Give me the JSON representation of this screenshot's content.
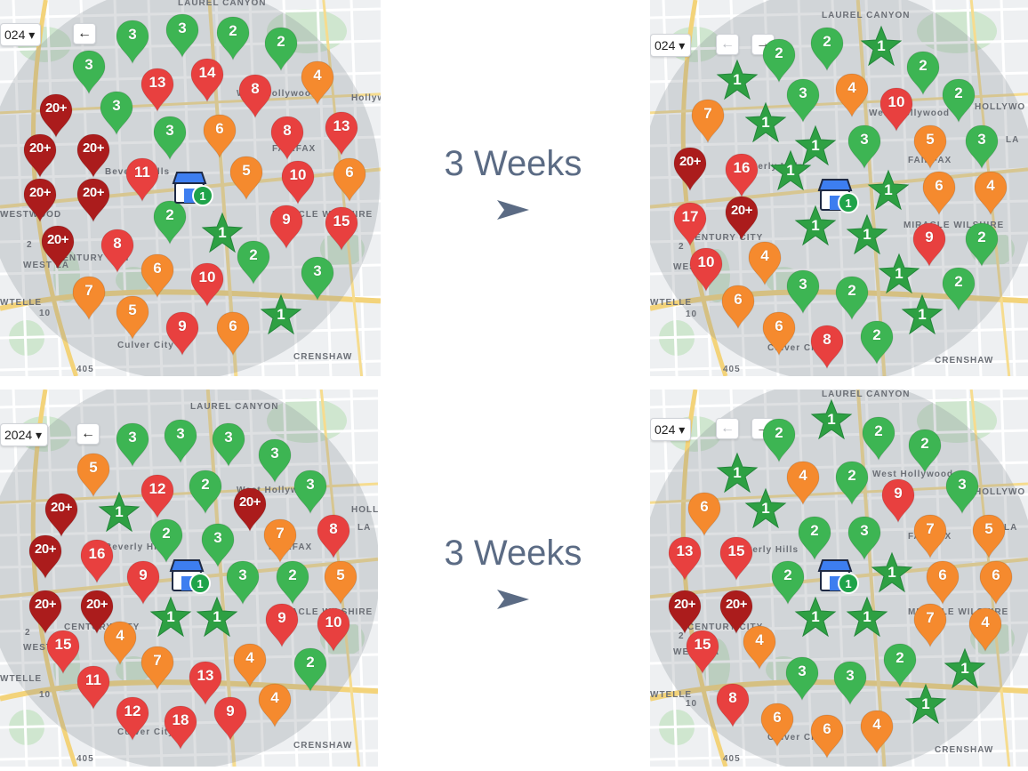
{
  "captions": [
    {
      "text": "3 Weeks"
    },
    {
      "text": "3 Weeks"
    }
  ],
  "colors": {
    "green": "#3db553",
    "orange": "#f58a2e",
    "red": "#e8403f",
    "darkred": "#ab1c1c",
    "star": "#2ea043",
    "store": "#3d7ef0",
    "caption": "#5b6b84"
  },
  "panels": [
    {
      "id": "top-left",
      "date_label": "024 ▾",
      "labels": [
        {
          "text": "LAUREL CANYON"
        },
        {
          "text": "Hollywo"
        },
        {
          "text": "Beverly Hills"
        },
        {
          "text": "West Hollywood"
        },
        {
          "text": "FAIRFAX"
        },
        {
          "text": "MIRACLE WILSHIRE"
        },
        {
          "text": "CENTURY CITY"
        },
        {
          "text": "Culver City"
        },
        {
          "text": "CRENSHAW"
        },
        {
          "text": "WESTWOOD"
        },
        {
          "text": "WEST LA"
        },
        {
          "text": "WTELLE"
        },
        {
          "text": "405"
        },
        {
          "text": "10"
        },
        {
          "text": "2"
        }
      ],
      "pins": [
        {
          "v": "3",
          "c": "green"
        },
        {
          "v": "3",
          "c": "green"
        },
        {
          "v": "2",
          "c": "green"
        },
        {
          "v": "2",
          "c": "green"
        },
        {
          "v": "3",
          "c": "green"
        },
        {
          "v": "13",
          "c": "red"
        },
        {
          "v": "14",
          "c": "red"
        },
        {
          "v": "8",
          "c": "red"
        },
        {
          "v": "4",
          "c": "orange"
        },
        {
          "v": "20+",
          "c": "darkred"
        },
        {
          "v": "3",
          "c": "green"
        },
        {
          "v": "3",
          "c": "green"
        },
        {
          "v": "6",
          "c": "orange"
        },
        {
          "v": "8",
          "c": "red"
        },
        {
          "v": "13",
          "c": "red"
        },
        {
          "v": "20+",
          "c": "darkred"
        },
        {
          "v": "20+",
          "c": "darkred"
        },
        {
          "v": "11",
          "c": "red"
        },
        {
          "v": "5",
          "c": "orange"
        },
        {
          "v": "10",
          "c": "red"
        },
        {
          "v": "6",
          "c": "orange"
        },
        {
          "v": "20+",
          "c": "darkred"
        },
        {
          "v": "20+",
          "c": "darkred"
        },
        {
          "v": "2",
          "c": "green"
        },
        {
          "v": "9",
          "c": "red"
        },
        {
          "v": "15",
          "c": "red"
        },
        {
          "v": "20+",
          "c": "darkred"
        },
        {
          "v": "8",
          "c": "red"
        },
        {
          "v": "6",
          "c": "orange"
        },
        {
          "v": "10",
          "c": "red"
        },
        {
          "v": "2",
          "c": "green"
        },
        {
          "v": "3",
          "c": "green"
        },
        {
          "v": "7",
          "c": "orange"
        },
        {
          "v": "5",
          "c": "orange"
        },
        {
          "v": "9",
          "c": "red"
        },
        {
          "v": "6",
          "c": "orange"
        }
      ],
      "stars": [
        {
          "v": "1"
        },
        {
          "v": "1"
        }
      ],
      "store_badge": "1"
    },
    {
      "id": "top-right",
      "date_label": "024 ▾",
      "labels": [
        {
          "text": "LAUREL CANYON"
        },
        {
          "text": "HOLLYWO"
        },
        {
          "text": "Beverly Hills"
        },
        {
          "text": "West Hollywood"
        },
        {
          "text": "FAIRFAX"
        },
        {
          "text": "MIRACLE WILSHIRE"
        },
        {
          "text": "CENTURY CITY"
        },
        {
          "text": "Culver City"
        },
        {
          "text": "CRENSHAW"
        },
        {
          "text": "WEST LA"
        },
        {
          "text": "WTELLE"
        },
        {
          "text": "405"
        },
        {
          "text": "10"
        },
        {
          "text": "2"
        },
        {
          "text": "LA"
        }
      ],
      "pins": [
        {
          "v": "2",
          "c": "green"
        },
        {
          "v": "2",
          "c": "green"
        },
        {
          "v": "2",
          "c": "green"
        },
        {
          "v": "3",
          "c": "green"
        },
        {
          "v": "4",
          "c": "orange"
        },
        {
          "v": "10",
          "c": "red"
        },
        {
          "v": "2",
          "c": "green"
        },
        {
          "v": "7",
          "c": "orange"
        },
        {
          "v": "3",
          "c": "green"
        },
        {
          "v": "5",
          "c": "orange"
        },
        {
          "v": "3",
          "c": "green"
        },
        {
          "v": "20+",
          "c": "darkred"
        },
        {
          "v": "16",
          "c": "red"
        },
        {
          "v": "6",
          "c": "orange"
        },
        {
          "v": "4",
          "c": "orange"
        },
        {
          "v": "17",
          "c": "red"
        },
        {
          "v": "20+",
          "c": "darkred"
        },
        {
          "v": "9",
          "c": "red"
        },
        {
          "v": "2",
          "c": "green"
        },
        {
          "v": "10",
          "c": "red"
        },
        {
          "v": "4",
          "c": "orange"
        },
        {
          "v": "3",
          "c": "green"
        },
        {
          "v": "2",
          "c": "green"
        },
        {
          "v": "2",
          "c": "green"
        },
        {
          "v": "6",
          "c": "orange"
        },
        {
          "v": "6",
          "c": "orange"
        },
        {
          "v": "8",
          "c": "red"
        },
        {
          "v": "2",
          "c": "green"
        }
      ],
      "stars": [
        {
          "v": "1"
        },
        {
          "v": "1"
        },
        {
          "v": "1"
        },
        {
          "v": "1"
        },
        {
          "v": "1"
        },
        {
          "v": "1"
        },
        {
          "v": "1"
        },
        {
          "v": "1"
        },
        {
          "v": "1"
        },
        {
          "v": "1"
        }
      ],
      "store_badge": "1"
    },
    {
      "id": "bottom-left",
      "date_label": "2024 ▾",
      "labels": [
        {
          "text": "LAUREL CANYON"
        },
        {
          "text": "HOLLYWO"
        },
        {
          "text": "Beverly Hills"
        },
        {
          "text": "West Hollywood"
        },
        {
          "text": "FAIRFAX"
        },
        {
          "text": "MIRACLE WILSHIRE"
        },
        {
          "text": "CENTURY CITY"
        },
        {
          "text": "Culver City"
        },
        {
          "text": "CRENSHAW"
        },
        {
          "text": "WEST LA"
        },
        {
          "text": "WTELLE"
        },
        {
          "text": "405"
        },
        {
          "text": "10"
        },
        {
          "text": "2"
        },
        {
          "text": "LA"
        }
      ],
      "pins": [
        {
          "v": "3",
          "c": "green"
        },
        {
          "v": "3",
          "c": "green"
        },
        {
          "v": "3",
          "c": "green"
        },
        {
          "v": "3",
          "c": "green"
        },
        {
          "v": "5",
          "c": "orange"
        },
        {
          "v": "12",
          "c": "red"
        },
        {
          "v": "2",
          "c": "green"
        },
        {
          "v": "20+",
          "c": "darkred"
        },
        {
          "v": "3",
          "c": "green"
        },
        {
          "v": "20+",
          "c": "darkred"
        },
        {
          "v": "2",
          "c": "green"
        },
        {
          "v": "3",
          "c": "green"
        },
        {
          "v": "7",
          "c": "orange"
        },
        {
          "v": "8",
          "c": "red"
        },
        {
          "v": "20+",
          "c": "darkred"
        },
        {
          "v": "16",
          "c": "red"
        },
        {
          "v": "9",
          "c": "red"
        },
        {
          "v": "3",
          "c": "green"
        },
        {
          "v": "2",
          "c": "green"
        },
        {
          "v": "5",
          "c": "orange"
        },
        {
          "v": "20+",
          "c": "darkred"
        },
        {
          "v": "20+",
          "c": "darkred"
        },
        {
          "v": "9",
          "c": "red"
        },
        {
          "v": "10",
          "c": "red"
        },
        {
          "v": "15",
          "c": "red"
        },
        {
          "v": "4",
          "c": "orange"
        },
        {
          "v": "7",
          "c": "orange"
        },
        {
          "v": "13",
          "c": "red"
        },
        {
          "v": "4",
          "c": "orange"
        },
        {
          "v": "2",
          "c": "green"
        },
        {
          "v": "11",
          "c": "red"
        },
        {
          "v": "12",
          "c": "red"
        },
        {
          "v": "18",
          "c": "red"
        },
        {
          "v": "9",
          "c": "red"
        },
        {
          "v": "4",
          "c": "orange"
        }
      ],
      "stars": [
        {
          "v": "1"
        },
        {
          "v": "1"
        },
        {
          "v": "1"
        }
      ],
      "store_badge": "1"
    },
    {
      "id": "bottom-right",
      "date_label": "024 ▾",
      "labels": [
        {
          "text": "LAUREL CANYON"
        },
        {
          "text": "HOLLYWO"
        },
        {
          "text": "Beverly Hills"
        },
        {
          "text": "West Hollywood"
        },
        {
          "text": "FAIRFAX"
        },
        {
          "text": "MIRACLE WILSHIRE"
        },
        {
          "text": "CENTURY CITY"
        },
        {
          "text": "Culver City"
        },
        {
          "text": "CRENSHAW"
        },
        {
          "text": "WEST LA"
        },
        {
          "text": "WTELLE"
        },
        {
          "text": "405"
        },
        {
          "text": "10"
        },
        {
          "text": "2"
        },
        {
          "text": "LA"
        }
      ],
      "pins": [
        {
          "v": "2",
          "c": "green"
        },
        {
          "v": "2",
          "c": "green"
        },
        {
          "v": "2",
          "c": "green"
        },
        {
          "v": "4",
          "c": "orange"
        },
        {
          "v": "2",
          "c": "green"
        },
        {
          "v": "9",
          "c": "red"
        },
        {
          "v": "3",
          "c": "green"
        },
        {
          "v": "6",
          "c": "orange"
        },
        {
          "v": "2",
          "c": "green"
        },
        {
          "v": "3",
          "c": "green"
        },
        {
          "v": "7",
          "c": "orange"
        },
        {
          "v": "5",
          "c": "orange"
        },
        {
          "v": "13",
          "c": "red"
        },
        {
          "v": "15",
          "c": "red"
        },
        {
          "v": "2",
          "c": "green"
        },
        {
          "v": "6",
          "c": "orange"
        },
        {
          "v": "6",
          "c": "orange"
        },
        {
          "v": "20+",
          "c": "darkred"
        },
        {
          "v": "20+",
          "c": "darkred"
        },
        {
          "v": "7",
          "c": "orange"
        },
        {
          "v": "4",
          "c": "orange"
        },
        {
          "v": "15",
          "c": "red"
        },
        {
          "v": "4",
          "c": "orange"
        },
        {
          "v": "2",
          "c": "green"
        },
        {
          "v": "3",
          "c": "green"
        },
        {
          "v": "3",
          "c": "green"
        },
        {
          "v": "8",
          "c": "red"
        },
        {
          "v": "6",
          "c": "orange"
        },
        {
          "v": "6",
          "c": "orange"
        },
        {
          "v": "4",
          "c": "orange"
        }
      ],
      "stars": [
        {
          "v": "1"
        },
        {
          "v": "1"
        },
        {
          "v": "1"
        },
        {
          "v": "1"
        },
        {
          "v": "1"
        },
        {
          "v": "1"
        },
        {
          "v": "1"
        },
        {
          "v": "1"
        }
      ],
      "store_badge": "1"
    }
  ]
}
